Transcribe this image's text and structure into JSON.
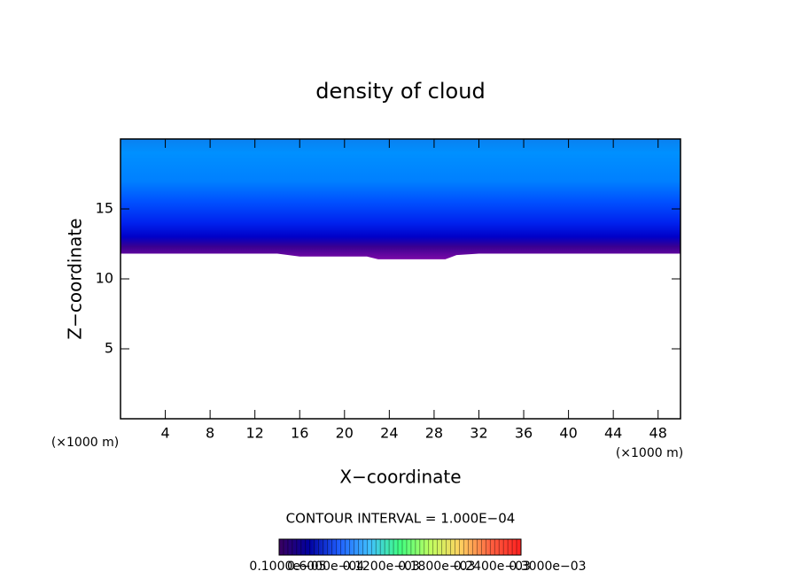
{
  "chart_data": {
    "type": "contour",
    "title": "density of cloud",
    "x_label": "X−coordinate",
    "y_label": "Z−coordinate",
    "x_unit": "(×1000 m)",
    "y_unit": "(×1000 m)",
    "xlim": [
      0,
      50
    ],
    "ylim": [
      0,
      20
    ],
    "xticks": [
      4,
      8,
      12,
      16,
      20,
      24,
      28,
      32,
      36,
      40,
      44,
      48
    ],
    "yticks": [
      5,
      10,
      15
    ],
    "x": [
      0,
      2,
      4,
      6,
      8,
      10,
      12,
      14,
      16,
      18,
      20,
      22,
      23,
      26,
      27,
      29,
      30,
      32,
      36,
      40,
      44,
      48,
      50
    ],
    "cloud_base": [
      11.8,
      11.8,
      11.8,
      11.8,
      11.8,
      11.8,
      11.8,
      11.8,
      11.6,
      11.6,
      11.6,
      11.6,
      11.4,
      11.4,
      11.4,
      11.4,
      11.7,
      11.8,
      11.8,
      11.8,
      11.8,
      11.8,
      11.8
    ],
    "cloud_top": 20,
    "level_z": [
      11.4,
      12.3,
      13,
      14,
      15.5,
      17,
      19,
      20
    ],
    "level_colors": [
      "#7a0aa8",
      "#3a0090",
      "#0000c8",
      "#0022ee",
      "#0050ff",
      "#0080ff",
      "#0090ff",
      "#0a80f0"
    ],
    "contour_interval": "CONTOUR INTERVAL = 1.000E−04",
    "colorbar_colors": [
      "#3a0060",
      "#0000a0",
      "#2060ff",
      "#40c0ff",
      "#40ff80",
      "#c0ff60",
      "#ffd060",
      "#ff6040",
      "#ff2020"
    ],
    "colorbar_labels": [
      "0.1000e−05",
      "0.6000e−04",
      "0.1200e−03",
      "0.1800e−03",
      "0.2400e−03",
      "0.3000e−03"
    ]
  }
}
